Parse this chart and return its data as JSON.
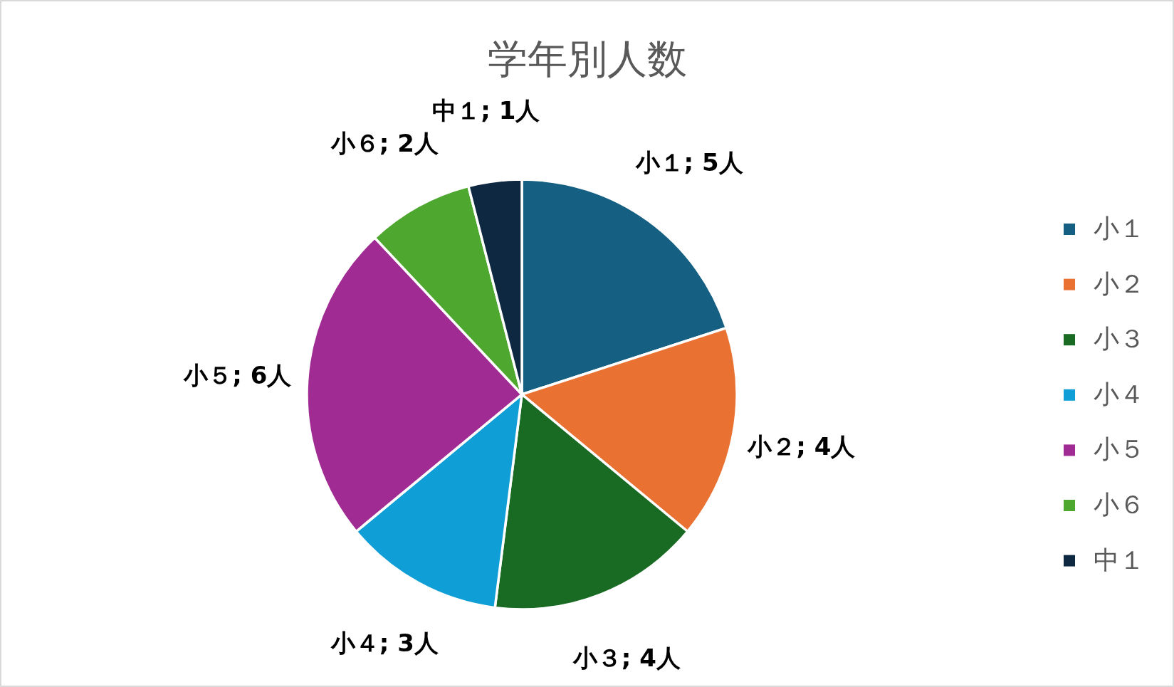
{
  "chart_data": {
    "type": "pie",
    "title": "学年別人数",
    "categories": [
      "小１",
      "小２",
      "小３",
      "小４",
      "小５",
      "小６",
      "中１"
    ],
    "values": [
      5,
      4,
      4,
      3,
      6,
      2,
      1
    ],
    "colors": [
      "#156082",
      "#e97132",
      "#196b24",
      "#0f9ed5",
      "#a02b93",
      "#4ea72e",
      "#0e2841"
    ],
    "value_labels": [
      "小１; 5人",
      "小２; 4人",
      "小３; 4人",
      "小４; 3人",
      "小５; 6人",
      "小６; 2人",
      "中１; 1人"
    ],
    "legend": "right"
  }
}
